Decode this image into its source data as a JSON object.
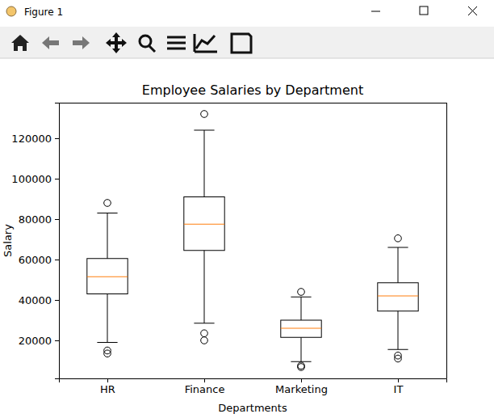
{
  "window": {
    "title": "Figure 1"
  },
  "chart_data": {
    "type": "box",
    "title": "Employee Salaries by Department",
    "x_label": "Departments",
    "y_label": "Salary",
    "categories": [
      "HR",
      "Finance",
      "Marketing",
      "IT"
    ],
    "boxes": [
      {
        "whislo": 19000,
        "q1": 43000,
        "med": 51500,
        "q3": 60500,
        "whishi": 83000,
        "fliers": [
          88000,
          15000,
          13500
        ]
      },
      {
        "whislo": 28500,
        "q1": 64500,
        "med": 77500,
        "q3": 91000,
        "whishi": 124000,
        "fliers": [
          132000,
          23500,
          20000
        ]
      },
      {
        "whislo": 9500,
        "q1": 21500,
        "med": 26000,
        "q3": 30000,
        "whishi": 41500,
        "fliers": [
          44000,
          7500,
          6800
        ]
      },
      {
        "whislo": 15500,
        "q1": 34500,
        "med": 42000,
        "q3": 48500,
        "whishi": 66000,
        "fliers": [
          70500,
          12500,
          11000
        ]
      }
    ],
    "ylim": [
      1200,
      137600
    ],
    "yticks": [
      20000,
      40000,
      60000,
      80000,
      100000,
      120000
    ],
    "grid": false
  }
}
